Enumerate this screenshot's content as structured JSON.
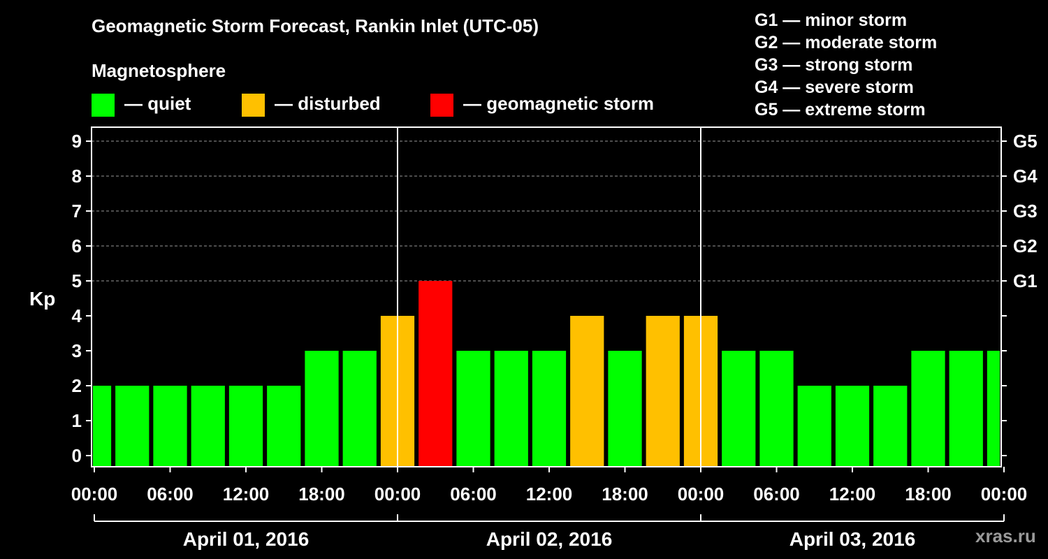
{
  "chart_data": {
    "type": "bar",
    "title": "Geomagnetic Storm Forecast, Rankin Inlet (UTC-05)",
    "ylabel": "Kp",
    "ylim": [
      0,
      9
    ],
    "yticks": [
      "0",
      "1",
      "2",
      "3",
      "4",
      "5",
      "6",
      "7",
      "8",
      "9"
    ],
    "right_ticks": [
      {
        "kp": 5,
        "label": "G1"
      },
      {
        "kp": 6,
        "label": "G2"
      },
      {
        "kp": 7,
        "label": "G3"
      },
      {
        "kp": 8,
        "label": "G4"
      },
      {
        "kp": 9,
        "label": "G5"
      }
    ],
    "xticks": [
      "00:00",
      "06:00",
      "12:00",
      "18:00",
      "00:00",
      "06:00",
      "12:00",
      "18:00",
      "00:00",
      "06:00",
      "12:00",
      "18:00",
      "00:00"
    ],
    "dates": [
      "April 01, 2016",
      "April 02, 2016",
      "April 03, 2016"
    ],
    "bars": [
      {
        "hour": 0,
        "kp": 2,
        "level": "quiet"
      },
      {
        "hour": 3,
        "kp": 2,
        "level": "quiet"
      },
      {
        "hour": 6,
        "kp": 2,
        "level": "quiet"
      },
      {
        "hour": 9,
        "kp": 2,
        "level": "quiet"
      },
      {
        "hour": 12,
        "kp": 2,
        "level": "quiet"
      },
      {
        "hour": 15,
        "kp": 2,
        "level": "quiet"
      },
      {
        "hour": 18,
        "kp": 3,
        "level": "quiet"
      },
      {
        "hour": 21,
        "kp": 3,
        "level": "quiet"
      },
      {
        "hour": 24,
        "kp": 4,
        "level": "disturbed"
      },
      {
        "hour": 27,
        "kp": 5,
        "level": "storm"
      },
      {
        "hour": 30,
        "kp": 3,
        "level": "quiet"
      },
      {
        "hour": 33,
        "kp": 3,
        "level": "quiet"
      },
      {
        "hour": 36,
        "kp": 3,
        "level": "quiet"
      },
      {
        "hour": 39,
        "kp": 4,
        "level": "disturbed"
      },
      {
        "hour": 42,
        "kp": 3,
        "level": "quiet"
      },
      {
        "hour": 45,
        "kp": 4,
        "level": "disturbed"
      },
      {
        "hour": 48,
        "kp": 4,
        "level": "disturbed"
      },
      {
        "hour": 51,
        "kp": 3,
        "level": "quiet"
      },
      {
        "hour": 54,
        "kp": 3,
        "level": "quiet"
      },
      {
        "hour": 57,
        "kp": 2,
        "level": "quiet"
      },
      {
        "hour": 60,
        "kp": 2,
        "level": "quiet"
      },
      {
        "hour": 63,
        "kp": 2,
        "level": "quiet"
      },
      {
        "hour": 66,
        "kp": 3,
        "level": "quiet"
      },
      {
        "hour": 69,
        "kp": 3,
        "level": "quiet"
      },
      {
        "hour": 72,
        "kp": 3,
        "level": "quiet"
      }
    ],
    "grid": true
  },
  "legend": {
    "heading": "Magnetosphere",
    "items": [
      {
        "label": "— quiet",
        "color": "#00ff00"
      },
      {
        "label": "— disturbed",
        "color": "#ffc000"
      },
      {
        "label": "— geomagnetic storm",
        "color": "#ff0000"
      }
    ]
  },
  "g_scale": [
    "G1 — minor storm",
    "G2 — moderate storm",
    "G3 — strong storm",
    "G4 — severe storm",
    "G5 — extreme storm"
  ],
  "colors": {
    "quiet": "#00ff00",
    "disturbed": "#ffc000",
    "storm": "#ff0000"
  },
  "watermark": "xras.ru"
}
